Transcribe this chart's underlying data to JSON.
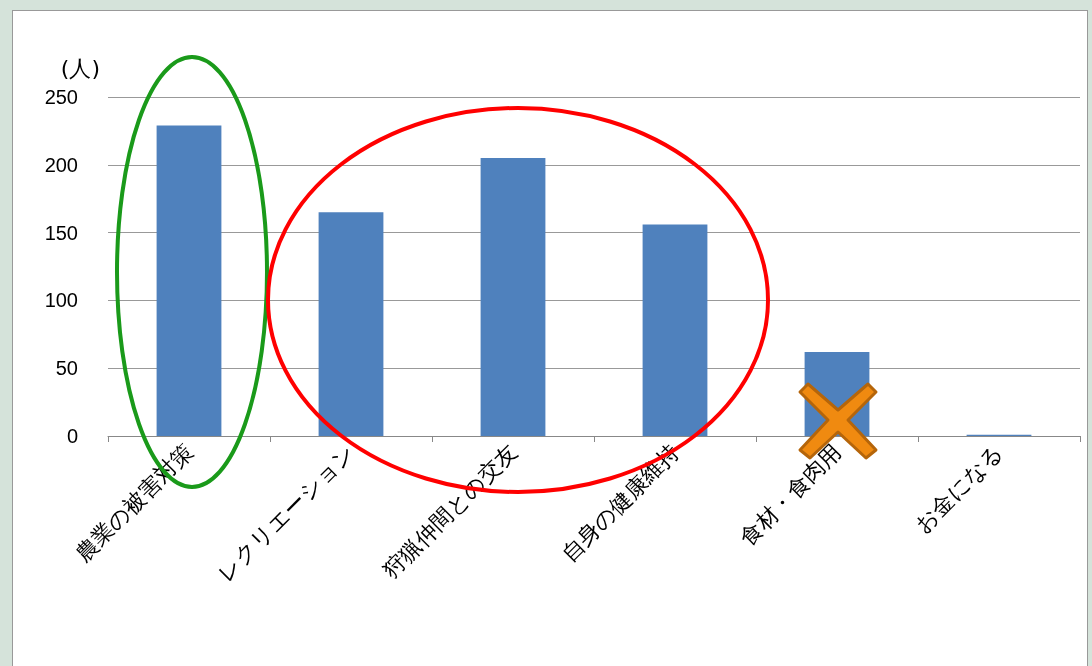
{
  "chart_data": {
    "type": "bar",
    "ylabel": "(人)",
    "categories": [
      "農業の被害対策",
      "レクリエーション",
      "狩猟仲間との交友",
      "自身の健康維持",
      "食材・食肉用",
      "お金になる"
    ],
    "values": [
      229,
      165,
      205,
      156,
      62,
      1
    ],
    "color": "#4f81bd",
    "ylim": [
      0,
      250
    ],
    "yticks": [
      0,
      50,
      100,
      150,
      200,
      250
    ],
    "grid": "y"
  }
}
